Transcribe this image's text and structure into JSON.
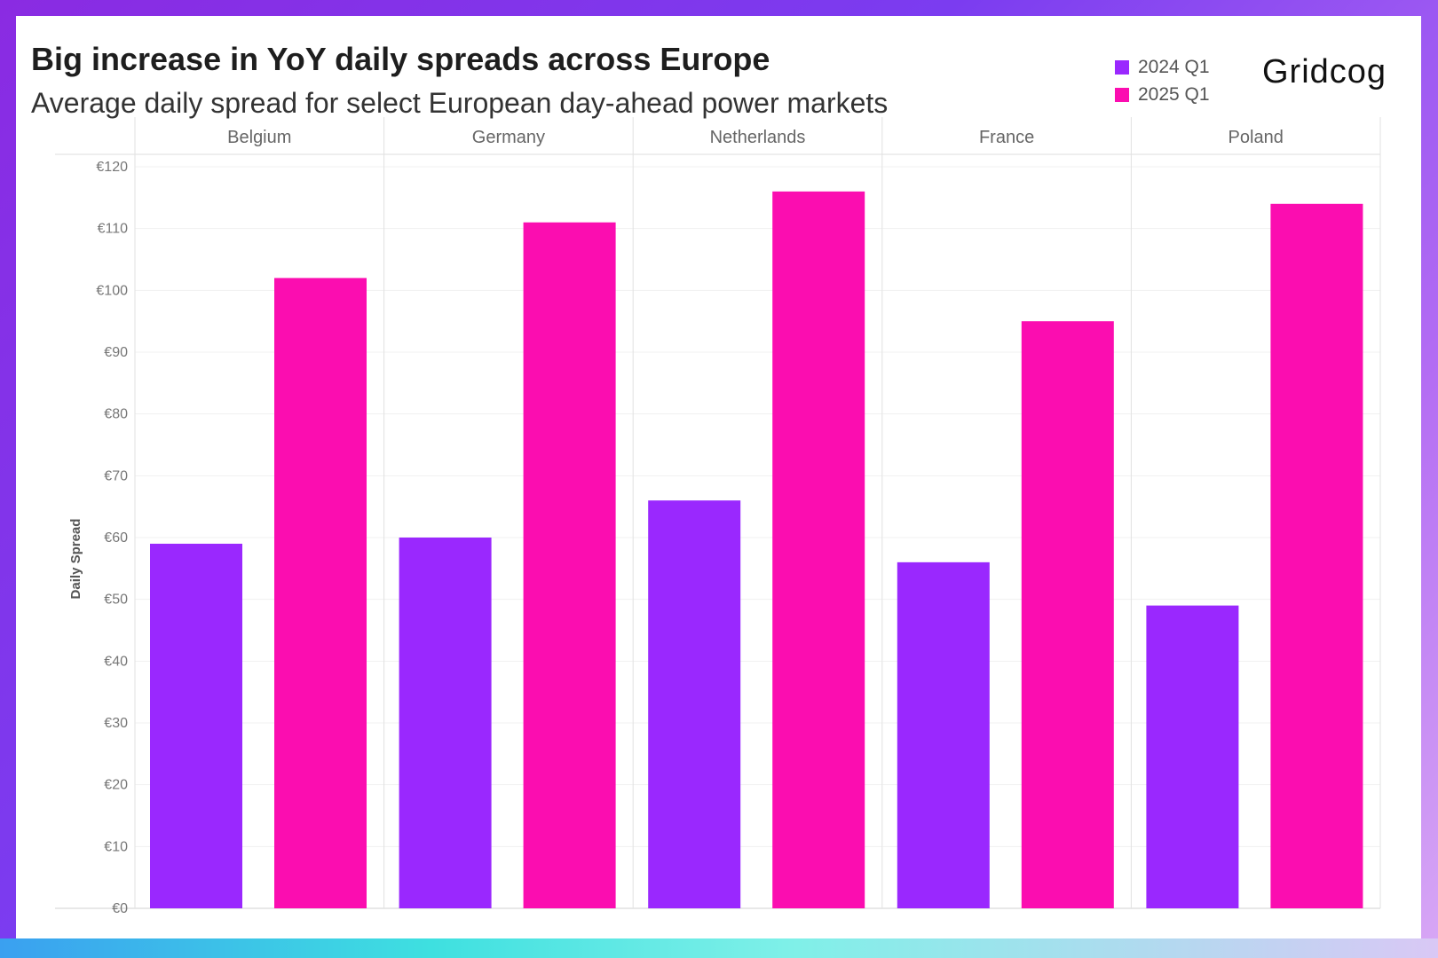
{
  "header": {
    "title": "Big increase in YoY daily spreads across Europe",
    "subtitle": "Average daily spread for select European day-ahead power markets"
  },
  "brand": {
    "logo_text": "Gridcog"
  },
  "colors": {
    "series_2024": "#9a28fe",
    "series_2025": "#fb0db0"
  },
  "chart_data": {
    "type": "bar",
    "title": "Big increase in YoY daily spreads across Europe",
    "subtitle": "Average daily spread for select European day-ahead power markets",
    "ylabel": "Daily Spread",
    "xlabel": "",
    "ylim": [
      0,
      120
    ],
    "yticks": [
      0,
      10,
      20,
      30,
      40,
      50,
      60,
      70,
      80,
      90,
      100,
      110,
      120
    ],
    "ytick_labels": [
      "€0",
      "€10",
      "€20",
      "€30",
      "€40",
      "€50",
      "€60",
      "€70",
      "€80",
      "€90",
      "€100",
      "€110",
      "€120"
    ],
    "categories": [
      "Belgium",
      "Germany",
      "Netherlands",
      "France",
      "Poland"
    ],
    "series": [
      {
        "name": "2024 Q1",
        "color": "#9a28fe",
        "values": [
          59,
          60,
          66,
          56,
          49
        ]
      },
      {
        "name": "2025 Q1",
        "color": "#fb0db0",
        "values": [
          102,
          111,
          116,
          95,
          114
        ]
      }
    ],
    "legend_position": "top-right",
    "grid": true
  }
}
